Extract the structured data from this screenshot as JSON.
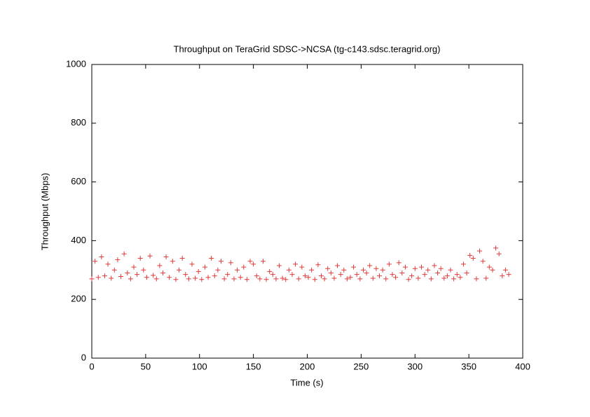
{
  "chart_data": {
    "type": "scatter",
    "title": "Throughput on TeraGrid SDSC->NCSA (tg-c143.sdsc.teragrid.org)",
    "xlabel": "Time (s)",
    "ylabel": "Throughput (Mbps)",
    "color": "#e03a3a",
    "xlim": [
      0,
      400
    ],
    "xticks": [
      0,
      50,
      100,
      150,
      200,
      250,
      300,
      350,
      400
    ],
    "ylim": [
      0,
      1000
    ],
    "yticks": [
      0,
      200,
      400,
      600,
      800,
      1000
    ],
    "x": [
      0,
      3,
      6,
      9,
      12,
      15,
      18,
      21,
      24,
      27,
      30,
      33,
      36,
      39,
      42,
      45,
      48,
      51,
      54,
      57,
      60,
      63,
      66,
      69,
      72,
      75,
      78,
      81,
      84,
      87,
      90,
      93,
      96,
      99,
      102,
      105,
      108,
      111,
      114,
      117,
      120,
      123,
      126,
      129,
      132,
      135,
      138,
      141,
      144,
      147,
      150,
      153,
      156,
      159,
      162,
      165,
      168,
      171,
      174,
      177,
      180,
      183,
      186,
      189,
      192,
      195,
      198,
      201,
      204,
      207,
      210,
      213,
      216,
      219,
      222,
      225,
      228,
      231,
      234,
      237,
      240,
      243,
      246,
      249,
      252,
      255,
      258,
      261,
      264,
      267,
      270,
      273,
      276,
      279,
      282,
      285,
      288,
      291,
      294,
      297,
      300,
      303,
      306,
      309,
      312,
      315,
      318,
      321,
      324,
      327,
      330,
      333,
      336,
      339,
      342,
      345,
      348,
      351,
      354,
      357,
      360,
      363,
      366,
      369,
      372,
      375,
      378,
      381,
      384,
      387
    ],
    "values": [
      270,
      330,
      275,
      345,
      280,
      320,
      272,
      300,
      335,
      278,
      355,
      290,
      270,
      310,
      285,
      340,
      300,
      275,
      348,
      282,
      270,
      315,
      290,
      345,
      275,
      330,
      268,
      300,
      340,
      285,
      270,
      320,
      272,
      295,
      268,
      310,
      275,
      340,
      280,
      300,
      330,
      270,
      285,
      325,
      270,
      300,
      275,
      310,
      268,
      330,
      320,
      280,
      270,
      330,
      268,
      295,
      285,
      270,
      315,
      272,
      268,
      300,
      285,
      320,
      270,
      310,
      280,
      275,
      300,
      268,
      318,
      280,
      270,
      305,
      290,
      272,
      315,
      285,
      300,
      270,
      275,
      310,
      285,
      270,
      300,
      290,
      315,
      272,
      305,
      280,
      300,
      270,
      320,
      285,
      275,
      325,
      290,
      310,
      268,
      280,
      305,
      272,
      310,
      285,
      300,
      270,
      315,
      290,
      305,
      272,
      280,
      300,
      270,
      285,
      275,
      320,
      290,
      350,
      340,
      270,
      365,
      330,
      272,
      310,
      300,
      375,
      355,
      280,
      300,
      285
    ]
  }
}
